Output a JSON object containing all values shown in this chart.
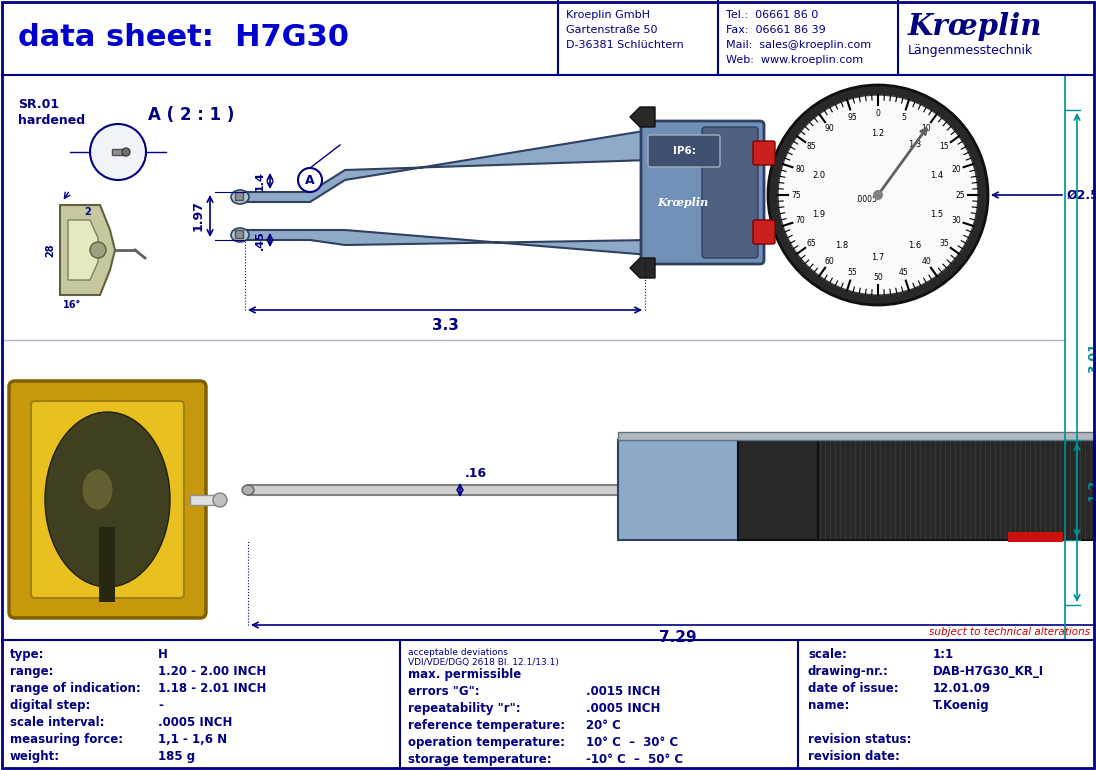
{
  "title": "data sheet:  H7G30",
  "title_color": "#0000CC",
  "title_fontsize": 22,
  "bg_color": "#FFFFFF",
  "border_color": "#000080",
  "company_name": "Kroeplin GmbH",
  "company_address1": "Gartenstraße 50",
  "company_address2": "D-36381 Schlüchtern",
  "tel": "Tel.:  06661 86 0",
  "fax": "Fax:  06661 86 39",
  "mail": "Mail:  sales@kroeplin.com",
  "web": "Web:  www.kroeplin.com",
  "brand_name": "Kroeplin",
  "brand_sub": "Längenmesstechnik",
  "brand_color": "#000080",
  "info_color": "#000080",
  "specs_color": "#000080",
  "subject_note": "subject to technical alterations",
  "spec_col1_labels": [
    "type:",
    "range:",
    "range of indication:",
    "digital step:",
    "scale interval:",
    "measuring force:",
    "weight:"
  ],
  "spec_col1_values": [
    "H",
    "1.20 - 2.00 INCH",
    "1.18 - 2.01 INCH",
    "-",
    ".0005 INCH",
    "1,1 - 1,6 N",
    "185 g"
  ],
  "spec_col2_header1": "acceptable deviations",
  "spec_col2_header2": "VDI/VDE/DGQ 2618 Bl. 12.1/13.1)",
  "spec_col2_labels": [
    "max. permissible",
    "errors \"G\":",
    "repeatability \"r\":",
    "reference temperature:",
    "operation temperature:",
    "storage temperature:"
  ],
  "spec_col2_values": [
    "",
    ".0015 INCH",
    ".0005 INCH",
    "20° C",
    "10° C  –  30° C",
    "-10° C  –  50° C"
  ],
  "spec_col3_labels": [
    "scale:",
    "drawing-nr.:",
    "date of issue:",
    "name:",
    "",
    "revision status:",
    "revision date:"
  ],
  "spec_col3_values": [
    "1:1",
    "DAB-H7G30_KR_I",
    "12.01.09",
    "T.Koenig",
    "",
    "",
    ""
  ],
  "dim_color": "#000080",
  "teal_color": "#009090",
  "red_note_color": "#CC0000"
}
